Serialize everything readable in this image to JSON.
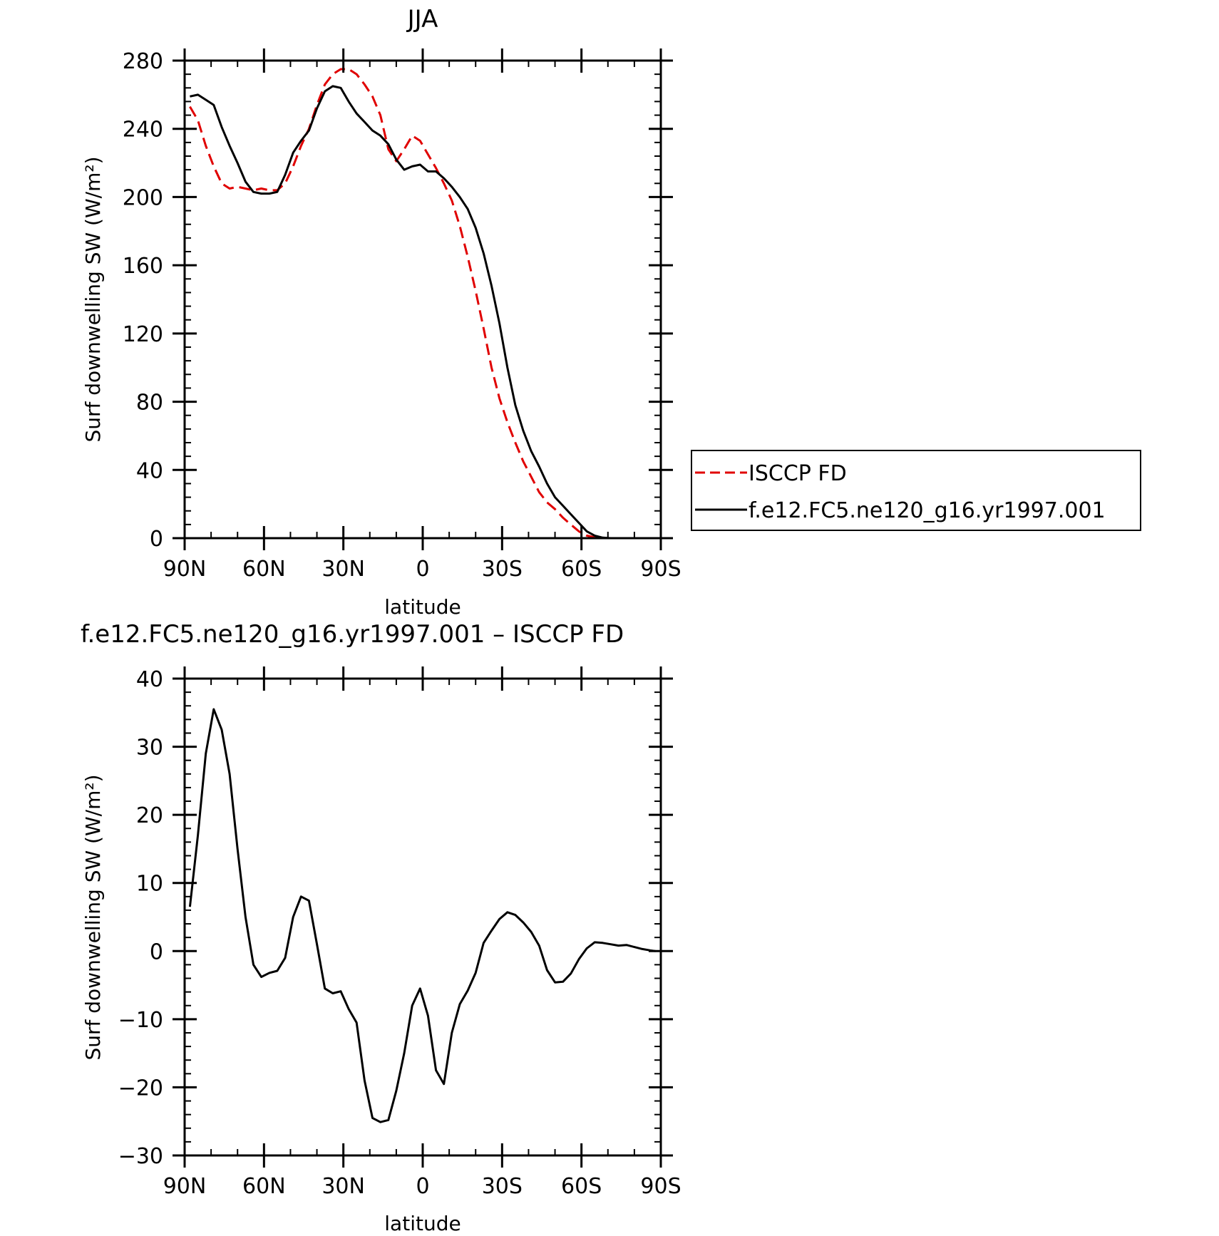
{
  "chart_data": [
    {
      "type": "line",
      "title": "JJA",
      "xlabel": "latitude",
      "ylabel": "Surf downwelling SW (W/m²)",
      "xlim": [
        90,
        -90
      ],
      "ylim": [
        0,
        280
      ],
      "x_ticks": [
        {
          "value": 90,
          "label": "90N"
        },
        {
          "value": 60,
          "label": "60N"
        },
        {
          "value": 30,
          "label": "30N"
        },
        {
          "value": 0,
          "label": "0"
        },
        {
          "value": -30,
          "label": "30S"
        },
        {
          "value": -60,
          "label": "60S"
        },
        {
          "value": -90,
          "label": "90S"
        }
      ],
      "y_ticks": [
        {
          "value": 0,
          "label": "0"
        },
        {
          "value": 40,
          "label": "40"
        },
        {
          "value": 80,
          "label": "80"
        },
        {
          "value": 120,
          "label": "120"
        },
        {
          "value": 160,
          "label": "160"
        },
        {
          "value": 200,
          "label": "200"
        },
        {
          "value": 240,
          "label": "240"
        },
        {
          "value": 280,
          "label": "280"
        }
      ],
      "grid": false,
      "legend_position": "right",
      "series": [
        {
          "name": "ISCCP FD",
          "color": "#e00000",
          "dash": "dashed",
          "x": [
            88,
            85,
            82,
            79,
            76,
            73,
            70,
            67,
            64,
            61,
            58,
            55,
            52,
            49,
            46,
            43,
            40,
            37,
            34,
            31,
            28,
            25,
            22,
            19,
            16,
            13,
            10,
            7,
            4,
            1,
            -2,
            -5,
            -8,
            -11,
            -14,
            -17,
            -20,
            -23,
            -26,
            -29,
            -32,
            -35,
            -38,
            -41,
            -44,
            -47,
            -50,
            -53,
            -56,
            -59,
            -62,
            -65,
            -68,
            -71,
            -74,
            -77,
            -80,
            -83,
            -86,
            -88
          ],
          "y": [
            253,
            245,
            230,
            218,
            208,
            205,
            206,
            205,
            204,
            205,
            204,
            204,
            208,
            218,
            230,
            240,
            254,
            266,
            272,
            275,
            275,
            272,
            266,
            259,
            248,
            228,
            221,
            228,
            236,
            233,
            225,
            217,
            208,
            198,
            183,
            165,
            145,
            123,
            100,
            82,
            68,
            56,
            45,
            36,
            27,
            21,
            17,
            12,
            8,
            4,
            1.5,
            0.5,
            0,
            0,
            0,
            0,
            0,
            0,
            0,
            0
          ]
        },
        {
          "name": "f.e12.FC5.ne120_g16.yr1997.001",
          "color": "#000000",
          "dash": "solid",
          "x": [
            88,
            85,
            82,
            79,
            76,
            73,
            70,
            67,
            64,
            61,
            58,
            55,
            52,
            49,
            46,
            43,
            40,
            37,
            34,
            31,
            28,
            25,
            22,
            19,
            16,
            13,
            10,
            7,
            4,
            1,
            -2,
            -5,
            -8,
            -11,
            -14,
            -17,
            -20,
            -23,
            -26,
            -29,
            -32,
            -35,
            -38,
            -41,
            -44,
            -47,
            -50,
            -53,
            -56,
            -59,
            -62,
            -65,
            -68,
            -71,
            -74,
            -77,
            -80,
            -83,
            -86,
            -88
          ],
          "y": [
            259,
            260,
            257,
            254,
            241,
            230,
            220,
            209,
            203,
            202,
            202,
            203,
            213,
            226,
            233,
            239,
            252,
            262,
            265,
            264,
            256,
            249,
            244,
            239,
            236,
            231,
            222,
            216,
            218,
            219,
            215,
            215,
            211,
            206,
            200,
            193,
            182,
            167,
            148,
            126,
            100,
            78,
            63,
            51,
            42,
            32,
            24,
            19,
            14,
            9,
            4,
            1.5,
            0.3,
            0,
            0,
            0,
            0,
            0,
            0,
            0
          ]
        }
      ]
    },
    {
      "type": "line",
      "title": "f.e12.FC5.ne120_g16.yr1997.001 – ISCCP FD",
      "xlabel": "latitude",
      "ylabel": "Surf downwelling SW (W/m²)",
      "xlim": [
        90,
        -90
      ],
      "ylim": [
        -30,
        40
      ],
      "x_ticks": [
        {
          "value": 90,
          "label": "90N"
        },
        {
          "value": 60,
          "label": "60N"
        },
        {
          "value": 30,
          "label": "30N"
        },
        {
          "value": 0,
          "label": "0"
        },
        {
          "value": -30,
          "label": "30S"
        },
        {
          "value": -60,
          "label": "60S"
        },
        {
          "value": -90,
          "label": "90S"
        }
      ],
      "y_ticks": [
        {
          "value": -30,
          "label": "−30"
        },
        {
          "value": -20,
          "label": "−20"
        },
        {
          "value": -10,
          "label": "−10"
        },
        {
          "value": 0,
          "label": "0"
        },
        {
          "value": 10,
          "label": "10"
        },
        {
          "value": 20,
          "label": "20"
        },
        {
          "value": 30,
          "label": "30"
        },
        {
          "value": 40,
          "label": "40"
        }
      ],
      "grid": false,
      "series": [
        {
          "color": "#000000",
          "dash": "solid",
          "x": [
            88,
            85,
            82,
            79,
            76,
            73,
            70,
            67,
            64,
            61,
            58,
            55,
            52,
            49,
            46,
            43,
            40,
            37,
            34,
            31,
            28,
            25,
            22,
            19,
            16,
            13,
            10,
            7,
            4,
            1,
            -2,
            -5,
            -8,
            -11,
            -14,
            -17,
            -20,
            -23,
            -26,
            -29,
            -32,
            -35,
            -38,
            -41,
            -44,
            -47,
            -50,
            -53,
            -56,
            -59,
            -62,
            -65,
            -68,
            -71,
            -74,
            -77,
            -80,
            -83,
            -86,
            -88
          ],
          "y": [
            6.5,
            17,
            29,
            35.5,
            32.5,
            26,
            15,
            5,
            -2,
            -3.8,
            -3.2,
            -2.9,
            -1,
            5,
            8,
            7.4,
            1,
            -5.5,
            -6.2,
            -5.9,
            -8.5,
            -10.5,
            -19,
            -24.5,
            -25.1,
            -24.8,
            -20.5,
            -15,
            -8,
            -5.5,
            -9.5,
            -17.5,
            -19.5,
            -12,
            -7.8,
            -5.8,
            -3.2,
            1.2,
            3,
            4.7,
            5.7,
            5.3,
            4.2,
            2.8,
            0.8,
            -2.8,
            -4.6,
            -4.5,
            -3.3,
            -1.2,
            0.4,
            1.3,
            1.2,
            1,
            0.8,
            0.9,
            0.6,
            0.3,
            0.1,
            0
          ]
        }
      ]
    }
  ]
}
